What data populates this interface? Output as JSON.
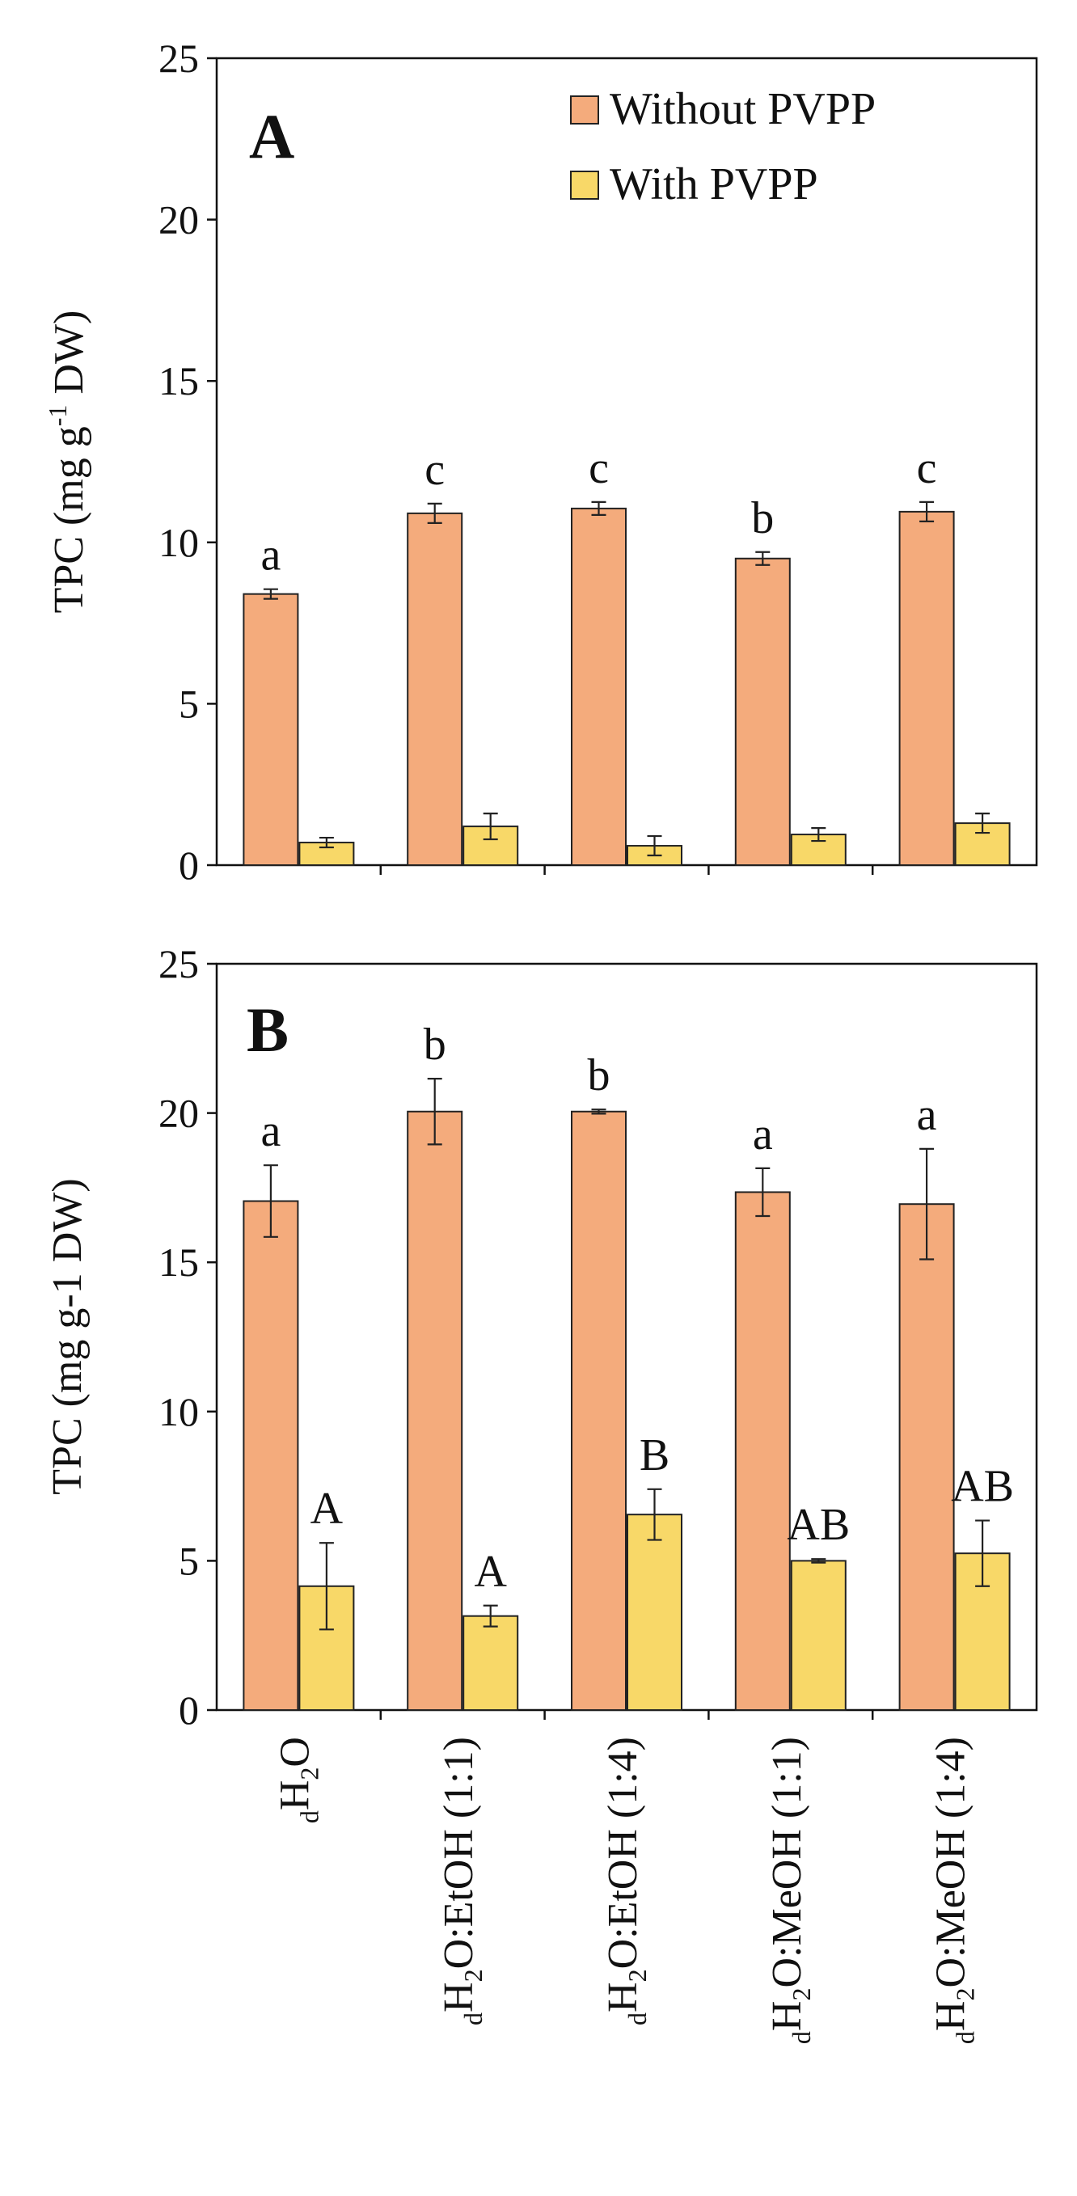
{
  "colors": {
    "without": "#F4AB7C",
    "with": "#F8D868",
    "axis": "#111111"
  },
  "chart_data": [
    {
      "type": "bar",
      "panel": "A",
      "ylabel": "TPC (mg g-1 DW)",
      "ylabel_parts": {
        "pre": "TPC (mg g",
        "sup": "-1",
        "post": " DW)"
      },
      "ylim": [
        0,
        25
      ],
      "yticks": [
        0,
        5,
        10,
        15,
        20,
        25
      ],
      "legend_position": "top-right",
      "categories": [
        "dH2O",
        "dH2O:EtOH (1:1)",
        "dH2O:EtOH (1:4)",
        "dH2O:MeOH (1:1)",
        "dH2O:MeOH (1:4)"
      ],
      "series": [
        {
          "name": "Without PVPP",
          "values": [
            8.4,
            10.9,
            11.05,
            9.5,
            10.95
          ],
          "errors": [
            0.15,
            0.3,
            0.2,
            0.2,
            0.3
          ],
          "letters": [
            "a",
            "c",
            "c",
            "b",
            "c"
          ]
        },
        {
          "name": "With PVPP",
          "values": [
            0.7,
            1.2,
            0.6,
            0.95,
            1.3
          ],
          "errors": [
            0.15,
            0.4,
            0.3,
            0.2,
            0.3
          ],
          "letters": [
            "",
            "",
            "",
            "",
            ""
          ]
        }
      ]
    },
    {
      "type": "bar",
      "panel": "B",
      "ylabel": "TPC (mg g-1 DW)",
      "ylim": [
        0,
        25
      ],
      "yticks": [
        0,
        5,
        10,
        15,
        20,
        25
      ],
      "categories": [
        "dH2O",
        "dH2O:EtOH (1:1)",
        "dH2O:EtOH (1:4)",
        "dH2O:MeOH (1:1)",
        "dH2O:MeOH (1:4)"
      ],
      "series": [
        {
          "name": "Without PVPP",
          "values": [
            17.05,
            20.05,
            20.05,
            17.35,
            16.95
          ],
          "errors": [
            1.2,
            1.1,
            0.07,
            0.8,
            1.85
          ],
          "letters": [
            "a",
            "b",
            "b",
            "a",
            "a"
          ]
        },
        {
          "name": "With PVPP",
          "values": [
            4.15,
            3.15,
            6.55,
            5.0,
            5.25
          ],
          "errors": [
            1.45,
            0.35,
            0.85,
            0.06,
            1.1
          ],
          "letters": [
            "A",
            "A",
            "B",
            "AB",
            "AB"
          ]
        }
      ]
    }
  ],
  "category_labels": [
    {
      "sub": "d",
      "main": "H",
      "sub2": "2",
      "rest": "O"
    },
    {
      "sub": "d",
      "main": "H",
      "sub2": "2",
      "rest": "O:EtOH (1:1)"
    },
    {
      "sub": "d",
      "main": "H",
      "sub2": "2",
      "rest": "O:EtOH (1:4)"
    },
    {
      "sub": "d",
      "main": "H",
      "sub2": "2",
      "rest": "O:MeOH (1:1)"
    },
    {
      "sub": "d",
      "main": "H",
      "sub2": "2",
      "rest": "O:MeOH (1:4)"
    }
  ]
}
